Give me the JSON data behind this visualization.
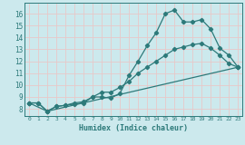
{
  "xlabel": "Humidex (Indice chaleur)",
  "background_color": "#cce9ed",
  "grid_color": "#e8c8c8",
  "line_color": "#2d7a7a",
  "xlim": [
    -0.5,
    23.5
  ],
  "ylim": [
    7.4,
    16.9
  ],
  "xtick_vals": [
    0,
    1,
    2,
    3,
    4,
    5,
    6,
    7,
    8,
    9,
    10,
    11,
    12,
    13,
    14,
    15,
    16,
    17,
    18,
    19,
    20,
    21,
    22,
    23
  ],
  "ytick_vals": [
    8,
    9,
    10,
    11,
    12,
    13,
    14,
    15,
    16
  ],
  "line1_x": [
    0,
    1,
    2,
    3,
    4,
    5,
    6,
    7,
    8,
    9,
    10,
    11,
    12,
    13,
    14,
    15,
    16,
    17,
    18,
    19,
    20,
    21,
    22,
    23
  ],
  "line1_y": [
    8.5,
    8.5,
    7.8,
    8.2,
    8.3,
    8.4,
    8.5,
    9.0,
    9.0,
    8.9,
    9.3,
    10.8,
    12.0,
    13.3,
    14.4,
    16.0,
    16.3,
    15.3,
    15.3,
    15.5,
    14.7,
    13.1,
    12.5,
    11.5
  ],
  "line2_x": [
    0,
    1,
    2,
    3,
    4,
    5,
    6,
    7,
    8,
    9,
    10,
    11,
    12,
    13,
    14,
    15,
    16,
    17,
    18,
    19,
    20,
    21,
    22,
    23
  ],
  "line2_y": [
    8.5,
    8.5,
    7.8,
    8.2,
    8.3,
    8.5,
    8.6,
    9.0,
    9.4,
    9.4,
    9.8,
    10.3,
    11.0,
    11.5,
    12.0,
    12.5,
    13.0,
    13.2,
    13.4,
    13.5,
    13.1,
    12.5,
    11.8,
    11.5
  ],
  "line3_x": [
    0,
    2,
    23
  ],
  "line3_y": [
    8.5,
    7.8,
    11.5
  ]
}
